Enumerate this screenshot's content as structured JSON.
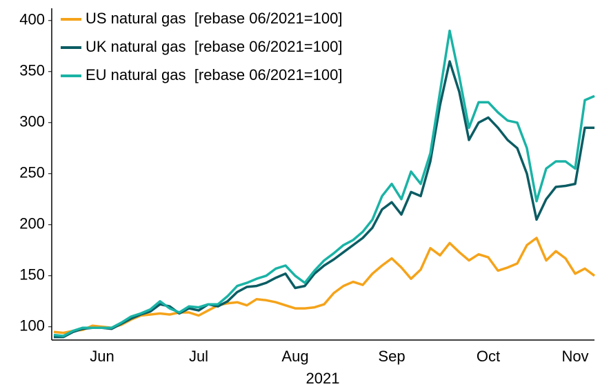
{
  "chart_data": {
    "type": "line",
    "xlabel": "2021",
    "categories": [
      null,
      null,
      null,
      null,
      null,
      "Jun",
      null,
      null,
      null,
      null,
      null,
      null,
      null,
      null,
      null,
      "Jul",
      null,
      null,
      null,
      null,
      null,
      null,
      null,
      null,
      null,
      "Aug",
      null,
      null,
      null,
      null,
      null,
      null,
      null,
      null,
      null,
      "Sep",
      null,
      null,
      null,
      null,
      null,
      null,
      null,
      null,
      null,
      "Oct",
      null,
      null,
      null,
      null,
      null,
      null,
      null,
      null,
      "Nov",
      null,
      null
    ],
    "series": [
      {
        "name": "US natural gas  [rebase 06/2021=100]",
        "color": "#f5a31a",
        "values": [
          95,
          94,
          96,
          97,
          101,
          100,
          99,
          102,
          107,
          111,
          112,
          113,
          112,
          114,
          114,
          111,
          116,
          121,
          123,
          124,
          121,
          127,
          126,
          124,
          121,
          118,
          118,
          119,
          122,
          133,
          140,
          144,
          141,
          152,
          160,
          167,
          158,
          147,
          156,
          177,
          170,
          182,
          173,
          165,
          171,
          168,
          155,
          158,
          162,
          180,
          187,
          165,
          174,
          167,
          152,
          157,
          150
        ]
      },
      {
        "name": "UK natural gas  [rebase 06/2021=100]",
        "color": "#0b5c63",
        "values": [
          90,
          90,
          95,
          98,
          99,
          99,
          98,
          103,
          108,
          112,
          115,
          122,
          120,
          113,
          118,
          116,
          122,
          120,
          125,
          134,
          139,
          140,
          143,
          148,
          152,
          138,
          140,
          152,
          160,
          166,
          173,
          180,
          187,
          197,
          215,
          222,
          210,
          232,
          228,
          262,
          317,
          360,
          330,
          283,
          300,
          305,
          295,
          283,
          275,
          250,
          205,
          225,
          237,
          238,
          240,
          295,
          295
        ]
      },
      {
        "name": "EU natural gas  [rebase 06/2021=100]",
        "color": "#1ab3a6",
        "values": [
          92,
          91,
          96,
          99,
          99,
          99,
          99,
          104,
          110,
          113,
          117,
          125,
          118,
          114,
          120,
          119,
          122,
          122,
          130,
          140,
          143,
          147,
          150,
          157,
          160,
          150,
          143,
          155,
          165,
          172,
          180,
          185,
          193,
          205,
          228,
          240,
          225,
          252,
          240,
          270,
          330,
          390,
          345,
          295,
          320,
          320,
          310,
          302,
          300,
          275,
          223,
          255,
          262,
          262,
          255,
          322,
          326
        ]
      }
    ],
    "ylim": [
      87,
      412
    ],
    "yticks": [
      100,
      150,
      200,
      250,
      300,
      350,
      400
    ]
  }
}
